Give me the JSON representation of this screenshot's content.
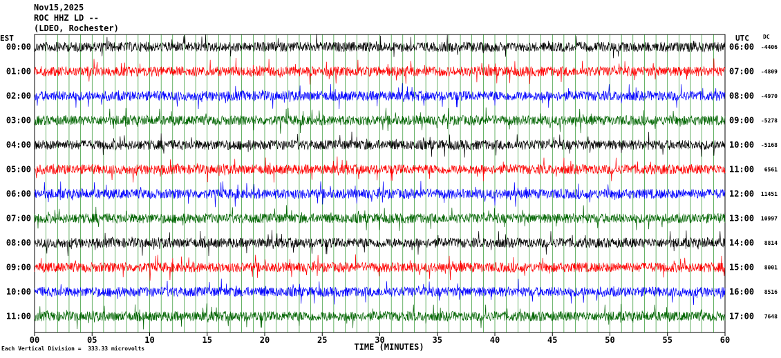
{
  "header": {
    "line1": "Nov15,2025",
    "line2": "ROC HHZ LD --",
    "line3": "(LDEO, Rochester)"
  },
  "left_axis_label": "EST",
  "right_axis_label": "UTC",
  "dc_label": "DC",
  "footer": "Each Vertical Division =  333.33 microvolts",
  "colors": {
    "black": "#000000",
    "red": "#ff0000",
    "blue": "#0000ff",
    "green": "#006400",
    "grid_green": "#007f00"
  },
  "chart_data": {
    "type": "line",
    "xlabel": "TIME (MINUTES)",
    "xlim": [
      0,
      60
    ],
    "x_ticks": [
      "00",
      "05",
      "10",
      "15",
      "20",
      "25",
      "30",
      "35",
      "40",
      "45",
      "50",
      "55",
      "60"
    ],
    "rows": [
      {
        "est": "00:00",
        "utc": "06:00",
        "dc": "-4406",
        "color": "black"
      },
      {
        "est": "01:00",
        "utc": "07:00",
        "dc": "-4809",
        "color": "red"
      },
      {
        "est": "02:00",
        "utc": "08:00",
        "dc": "-4970",
        "color": "blue"
      },
      {
        "est": "03:00",
        "utc": "09:00",
        "dc": "-5278",
        "color": "green"
      },
      {
        "est": "04:00",
        "utc": "10:00",
        "dc": "-5168",
        "color": "black"
      },
      {
        "est": "05:00",
        "utc": "11:00",
        "dc": "6561",
        "color": "red"
      },
      {
        "est": "06:00",
        "utc": "12:00",
        "dc": "11451",
        "color": "blue"
      },
      {
        "est": "07:00",
        "utc": "13:00",
        "dc": "10997",
        "color": "green"
      },
      {
        "est": "08:00",
        "utc": "14:00",
        "dc": "8814",
        "color": "black"
      },
      {
        "est": "09:00",
        "utc": "15:00",
        "dc": "8001",
        "color": "red"
      },
      {
        "est": "10:00",
        "utc": "16:00",
        "dc": "8516",
        "color": "blue"
      },
      {
        "est": "11:00",
        "utc": "17:00",
        "dc": "7648",
        "color": "green"
      }
    ]
  }
}
